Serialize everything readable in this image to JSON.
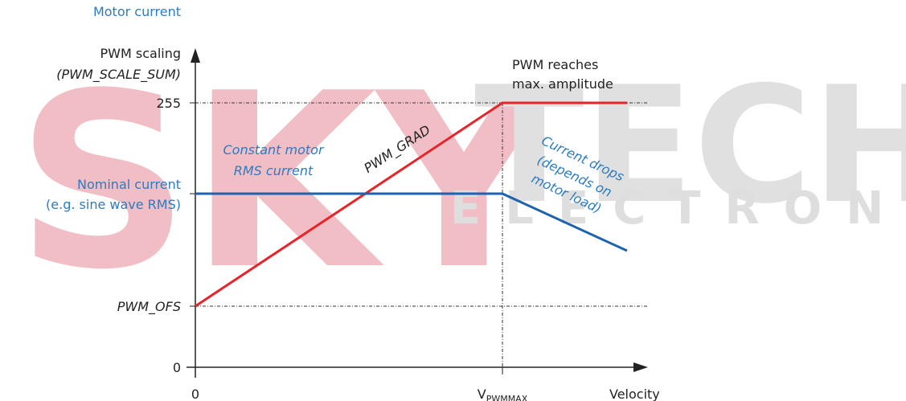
{
  "watermark": {
    "brand_left": "SKY",
    "brand_right": "TECH",
    "sub": "ELECTRONIC"
  },
  "axes": {
    "y_title_current": "Motor current",
    "y_title_pwm_1": "PWM scaling",
    "y_title_pwm_2": "(PWM_SCALE_SUM)",
    "y_255": "255",
    "y_nominal_1": "Nominal current",
    "y_nominal_2": "(e.g. sine wave RMS)",
    "y_ofs": "PWM_OFS",
    "y_zero": "0",
    "x_zero": "0",
    "x_vmax_main": "V",
    "x_vmax_sub": "PWMMAX",
    "x_title": "Velocity"
  },
  "annotations": {
    "constant_1": "Constant motor",
    "constant_2": "RMS current",
    "grad": "PWM_GRAD",
    "reaches_1": "PWM reaches",
    "reaches_2": "max. amplitude",
    "drops_1": "Current drops",
    "drops_2": "(depends on",
    "drops_3": "motor load)"
  }
}
